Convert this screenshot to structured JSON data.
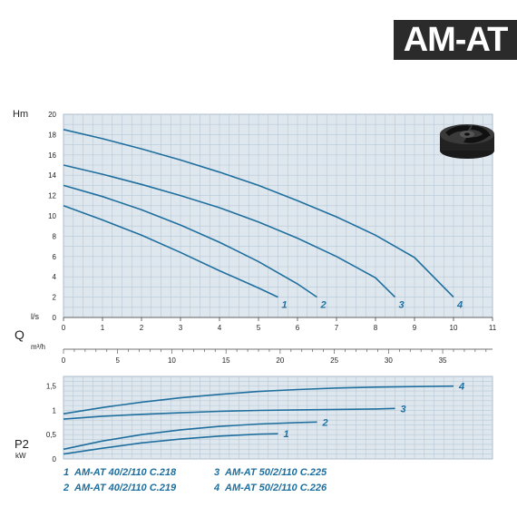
{
  "header": {
    "model": "AM-AT"
  },
  "chart_data": [
    {
      "type": "line",
      "name": "H-Q curves",
      "ylabel": "Hm",
      "xlabel_top": "l/s",
      "xlabel_mid": "Q",
      "xlabel_bottom": "m³/h",
      "ylim": [
        0,
        20
      ],
      "yticks": [
        0,
        2,
        4,
        6,
        8,
        10,
        12,
        14,
        16,
        18,
        20
      ],
      "xlim_ls": [
        0,
        11
      ],
      "xticks_ls": [
        0,
        1,
        2,
        3,
        4,
        5,
        6,
        7,
        8,
        9,
        10,
        11
      ],
      "xlim_m3h": [
        0,
        39.6
      ],
      "xticks_m3h": [
        0,
        5,
        10,
        15,
        20,
        25,
        30,
        35
      ],
      "series": [
        {
          "name": "1",
          "x": [
            0,
            1,
            2,
            3,
            4,
            5,
            5.5
          ],
          "y": [
            11,
            9.6,
            8.1,
            6.4,
            4.6,
            2.9,
            2
          ]
        },
        {
          "name": "2",
          "x": [
            0,
            1,
            2,
            3,
            4,
            5,
            6,
            6.5
          ],
          "y": [
            13,
            11.9,
            10.6,
            9.1,
            7.4,
            5.5,
            3.3,
            2
          ]
        },
        {
          "name": "3",
          "x": [
            0,
            1,
            2,
            3,
            4,
            5,
            6,
            7,
            8,
            8.5
          ],
          "y": [
            15,
            14.1,
            13.1,
            12,
            10.8,
            9.4,
            7.8,
            6,
            3.9,
            2
          ]
        },
        {
          "name": "4",
          "x": [
            0,
            1,
            2,
            3,
            4,
            5,
            6,
            7,
            8,
            9,
            10
          ],
          "y": [
            18.5,
            17.6,
            16.6,
            15.5,
            14.3,
            13,
            11.5,
            9.9,
            8.1,
            5.9,
            2
          ]
        }
      ]
    },
    {
      "type": "line",
      "name": "P2 curves",
      "ylabel": "P2",
      "yunit": "kW",
      "ylim": [
        0,
        1.7
      ],
      "yticks": [
        0,
        0.5,
        1,
        1.5
      ],
      "ytick_labels": [
        "0",
        "0,5",
        "1",
        "1,5"
      ],
      "xlim_ls": [
        0,
        11
      ],
      "series": [
        {
          "name": "1",
          "x": [
            0,
            1,
            2,
            3,
            4,
            5,
            5.5
          ],
          "y": [
            0.1,
            0.22,
            0.33,
            0.41,
            0.47,
            0.51,
            0.52
          ]
        },
        {
          "name": "2",
          "x": [
            0,
            1,
            2,
            3,
            4,
            5,
            6,
            6.5
          ],
          "y": [
            0.2,
            0.37,
            0.5,
            0.6,
            0.67,
            0.72,
            0.75,
            0.76
          ]
        },
        {
          "name": "3",
          "x": [
            0,
            1,
            2,
            3,
            4,
            5,
            6,
            7,
            8,
            8.5
          ],
          "y": [
            0.82,
            0.88,
            0.92,
            0.95,
            0.98,
            1.0,
            1.01,
            1.02,
            1.03,
            1.04
          ]
        },
        {
          "name": "4",
          "x": [
            0,
            1,
            2,
            3,
            4,
            5,
            6,
            7,
            8,
            9,
            10
          ],
          "y": [
            0.93,
            1.06,
            1.17,
            1.26,
            1.33,
            1.39,
            1.43,
            1.46,
            1.48,
            1.49,
            1.5
          ]
        }
      ]
    }
  ],
  "curve_labels": [
    "1",
    "2",
    "3",
    "4"
  ],
  "legend": [
    {
      "num": "1",
      "text": "AM-AT 40/2/110 C.218"
    },
    {
      "num": "2",
      "text": "AM-AT 40/2/110 C.219"
    },
    {
      "num": "3",
      "text": "AM-AT 50/2/110 C.225"
    },
    {
      "num": "4",
      "text": "AM-AT 50/2/110 C.226"
    }
  ],
  "colors": {
    "curve": "#1f6f9e",
    "frame": "#dfe7ee",
    "grid": "#b7c8d6"
  },
  "icons": {
    "impeller": "impeller-icon"
  }
}
